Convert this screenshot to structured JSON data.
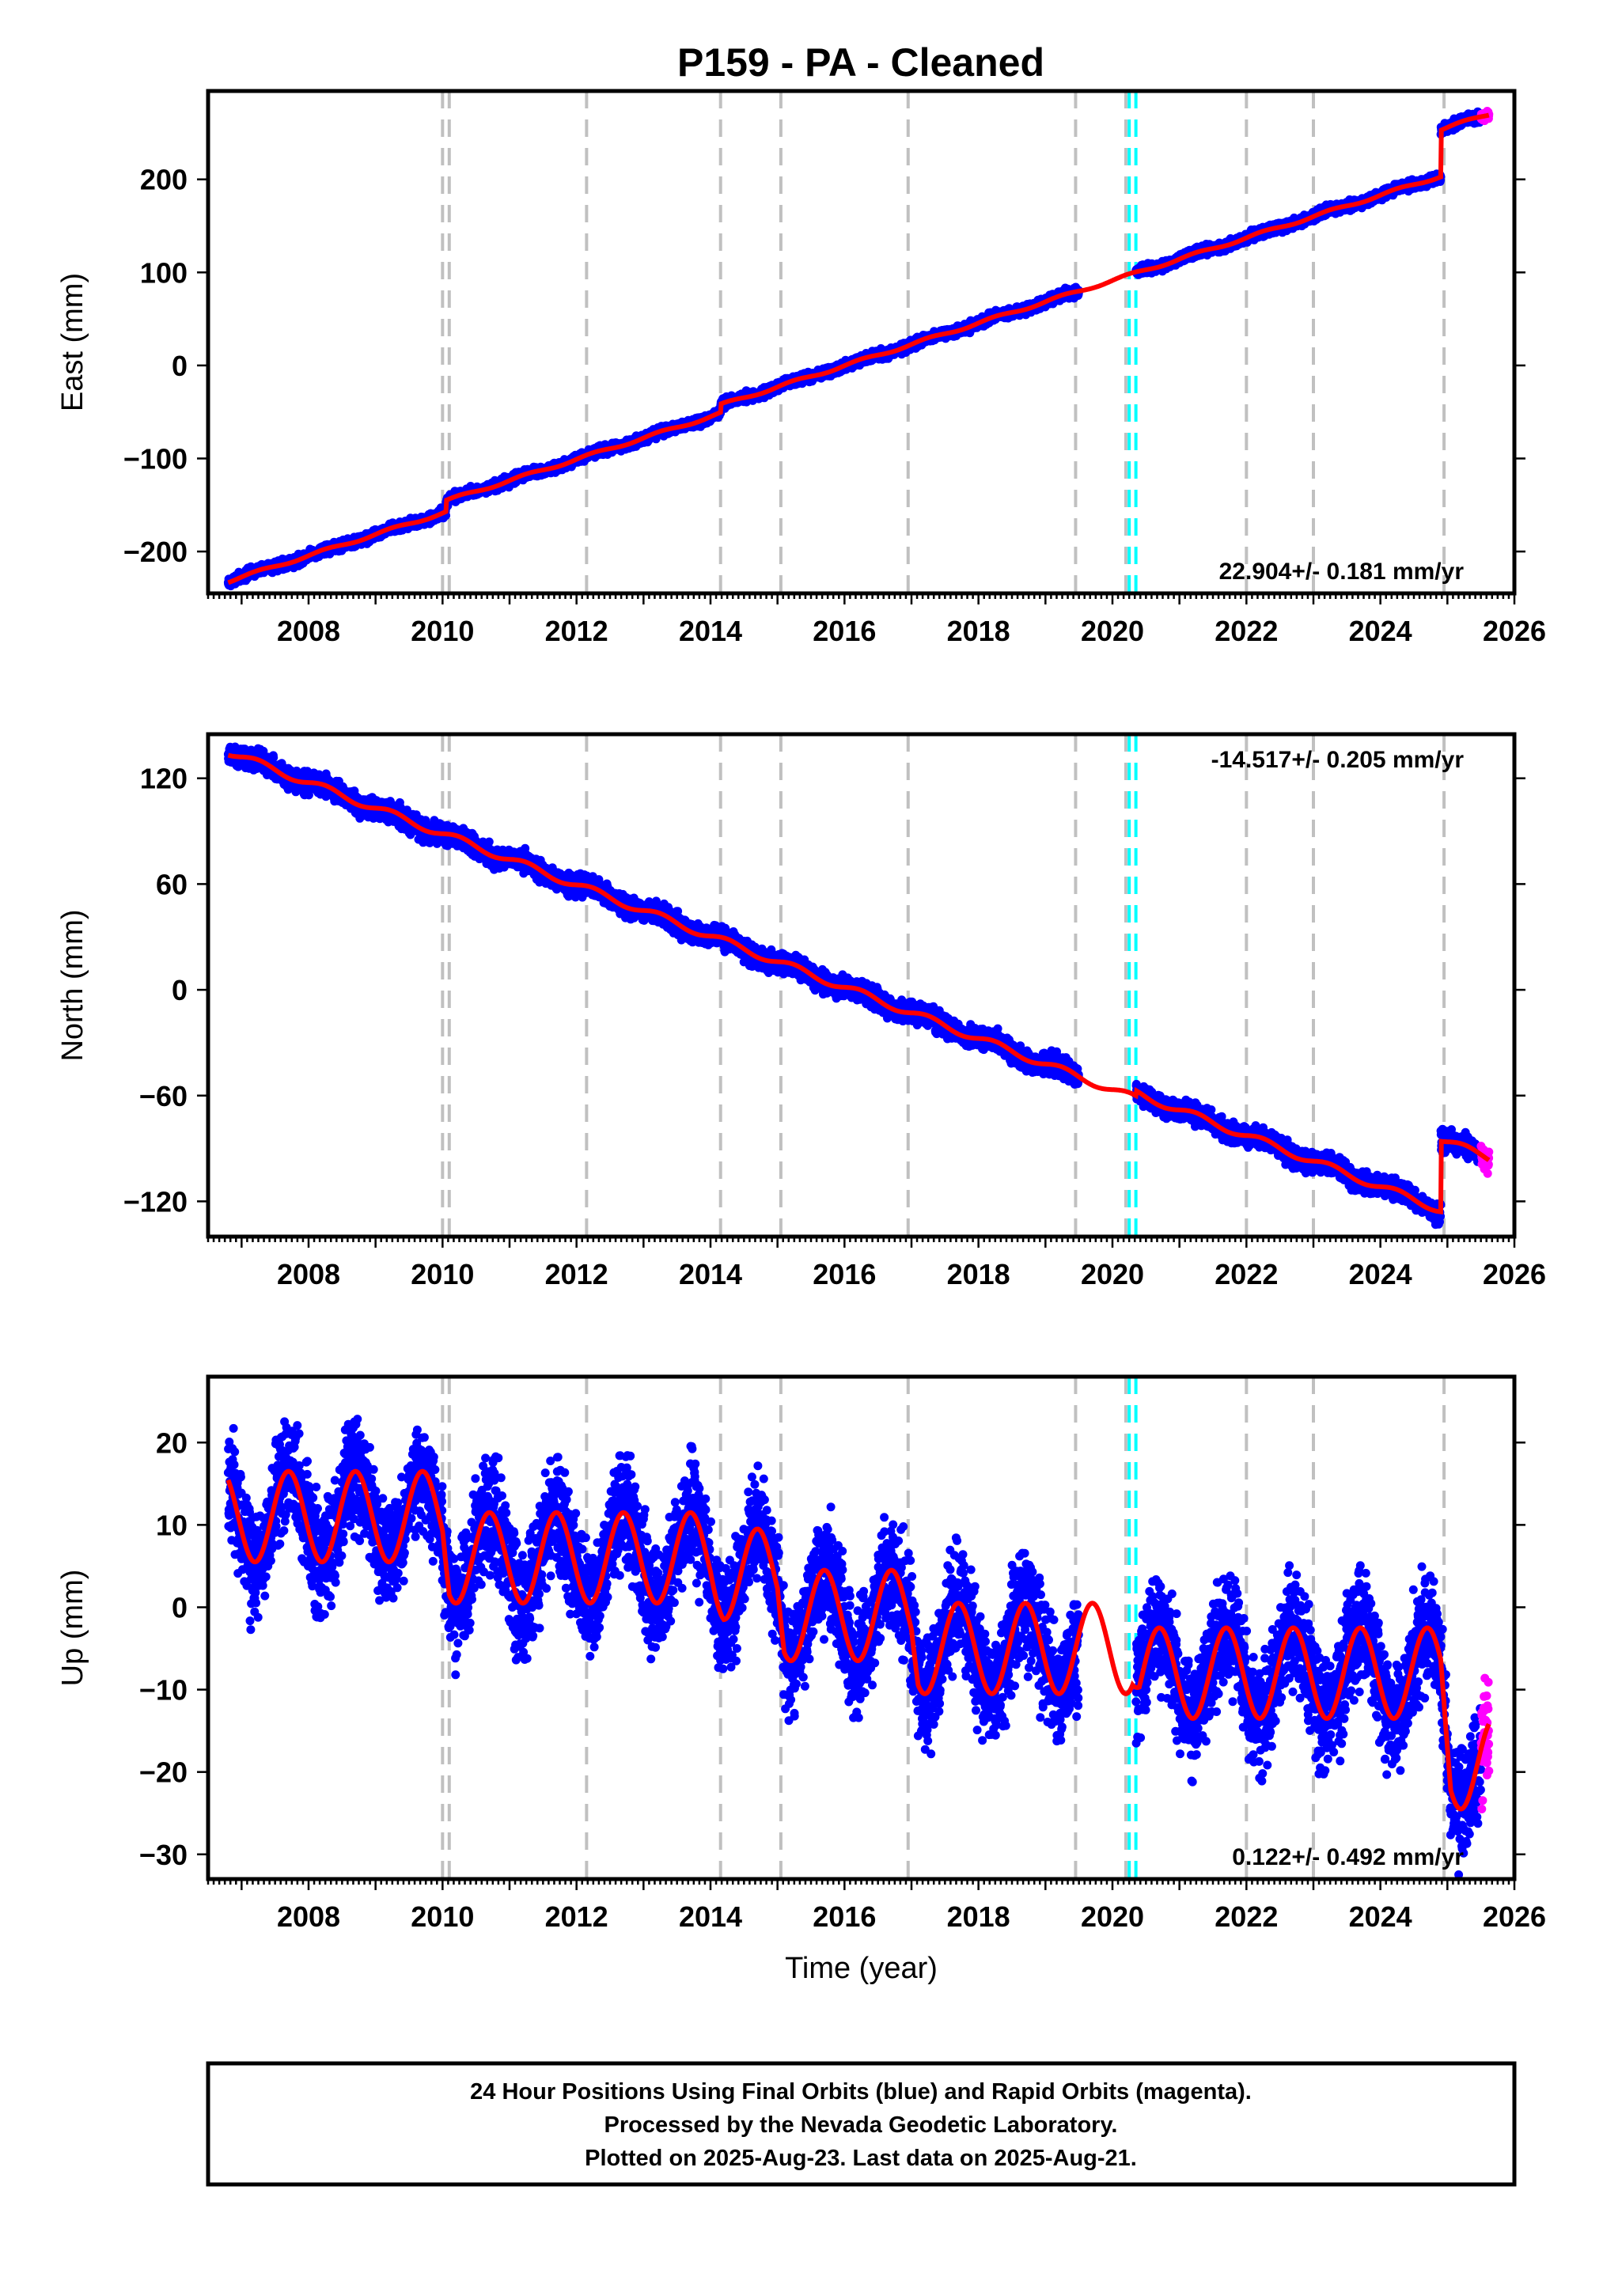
{
  "title": "P159  - PA - Cleaned",
  "footer": {
    "line1": "24 Hour Positions Using Final Orbits (blue) and Rapid Orbits (magenta).",
    "line2": "Processed by the Nevada Geodetic Laboratory.",
    "line3": "Plotted on 2025-Aug-23. Last data on 2025-Aug-21."
  },
  "colors": {
    "final_orbits": "#0000ff",
    "rapid_orbits": "#ff00ff",
    "model_fit": "#ff0000",
    "equipment_change_lines": "#c0c0c0",
    "cyan_lines": "#00ffff"
  },
  "chart_data": [
    {
      "type": "scatter",
      "component": "east",
      "ylabel": "East (mm)",
      "xlabel": "",
      "xlim": [
        2006.5,
        2026.0
      ],
      "ylim": [
        -245,
        295
      ],
      "xticks": [
        "2008",
        "2010",
        "2012",
        "2014",
        "2016",
        "2018",
        "2020",
        "2022",
        "2024",
        "2026"
      ],
      "yticks": [
        "−200",
        "−100",
        "0",
        "100",
        "200"
      ],
      "ytick_values": [
        -200,
        -100,
        0,
        100,
        200
      ],
      "rate_label": "22.904+/- 0.181 mm/yr",
      "rate_position": "bottom-right",
      "rate": 22.904,
      "steps": [
        {
          "time": 2010.05,
          "offset": 12
        },
        {
          "time": 2014.15,
          "offset": 9
        },
        {
          "time": 2024.9,
          "offset": 50
        }
      ],
      "data_start": 2006.8,
      "data_end": 2025.62,
      "gap": [
        2019.5,
        2020.35
      ],
      "start_value": -232,
      "noise": 2.5,
      "seasonal_amplitude": 1.5
    },
    {
      "type": "scatter",
      "component": "north",
      "ylabel": "North (mm)",
      "xlabel": "",
      "xlim": [
        2006.5,
        2026.0
      ],
      "ylim": [
        -140,
        145
      ],
      "xticks": [
        "2008",
        "2010",
        "2012",
        "2014",
        "2016",
        "2018",
        "2020",
        "2022",
        "2024",
        "2026"
      ],
      "yticks": [
        "−120",
        "−60",
        "0",
        "60",
        "120"
      ],
      "ytick_values": [
        -120,
        -60,
        0,
        60,
        120
      ],
      "rate_label": "-14.517+/- 0.205 mm/yr",
      "rate_position": "top-right",
      "rate": -14.517,
      "steps": [
        {
          "time": 2020.35,
          "offset": 3
        },
        {
          "time": 2024.9,
          "offset": 40
        }
      ],
      "data_start": 2006.8,
      "data_end": 2025.62,
      "gap": [
        2019.5,
        2020.35
      ],
      "start_value": 135,
      "noise": 2.8,
      "seasonal_amplitude": 2
    },
    {
      "type": "scatter",
      "component": "up",
      "ylabel": "Up (mm)",
      "xlabel": "Time (year)",
      "xlim": [
        2006.5,
        2026.0
      ],
      "ylim": [
        -33,
        28
      ],
      "xticks": [
        "2008",
        "2010",
        "2012",
        "2014",
        "2016",
        "2018",
        "2020",
        "2022",
        "2024",
        "2026"
      ],
      "yticks": [
        "−30",
        "−20",
        "−10",
        "0",
        "10",
        "20"
      ],
      "ytick_values": [
        -30,
        -20,
        -10,
        0,
        10,
        20
      ],
      "rate_label": "0.122+/- 0.492 mm/yr",
      "rate_position": "bottom-right",
      "rate": 0.122,
      "mean_curve": [
        [
          2006.8,
          11
        ],
        [
          2010.0,
          11
        ],
        [
          2010.1,
          6
        ],
        [
          2014.0,
          6
        ],
        [
          2014.2,
          4
        ],
        [
          2015.0,
          4
        ],
        [
          2015.1,
          -1
        ],
        [
          2017.0,
          -1
        ],
        [
          2017.1,
          -5
        ],
        [
          2020.3,
          -5
        ],
        [
          2020.4,
          -8
        ],
        [
          2024.9,
          -8
        ],
        [
          2025.05,
          -19
        ],
        [
          2025.62,
          -19
        ]
      ],
      "seasonal_amplitude": 5.5,
      "seasonal_peak_phase": 0.7,
      "data_start": 2006.8,
      "data_end": 2025.62,
      "gap": [
        2019.5,
        2020.35
      ],
      "noise": 3.2
    }
  ],
  "vertical_lines": {
    "gray_dashed": [
      2010.0,
      2010.1,
      2012.15,
      2014.15,
      2015.05,
      2016.95,
      2019.45,
      2020.2,
      2022.0,
      2023.0,
      2024.95
    ],
    "cyan_dashed": [
      2020.25,
      2020.35
    ]
  },
  "rapid_orbit_span": [
    2025.5,
    2025.62
  ]
}
